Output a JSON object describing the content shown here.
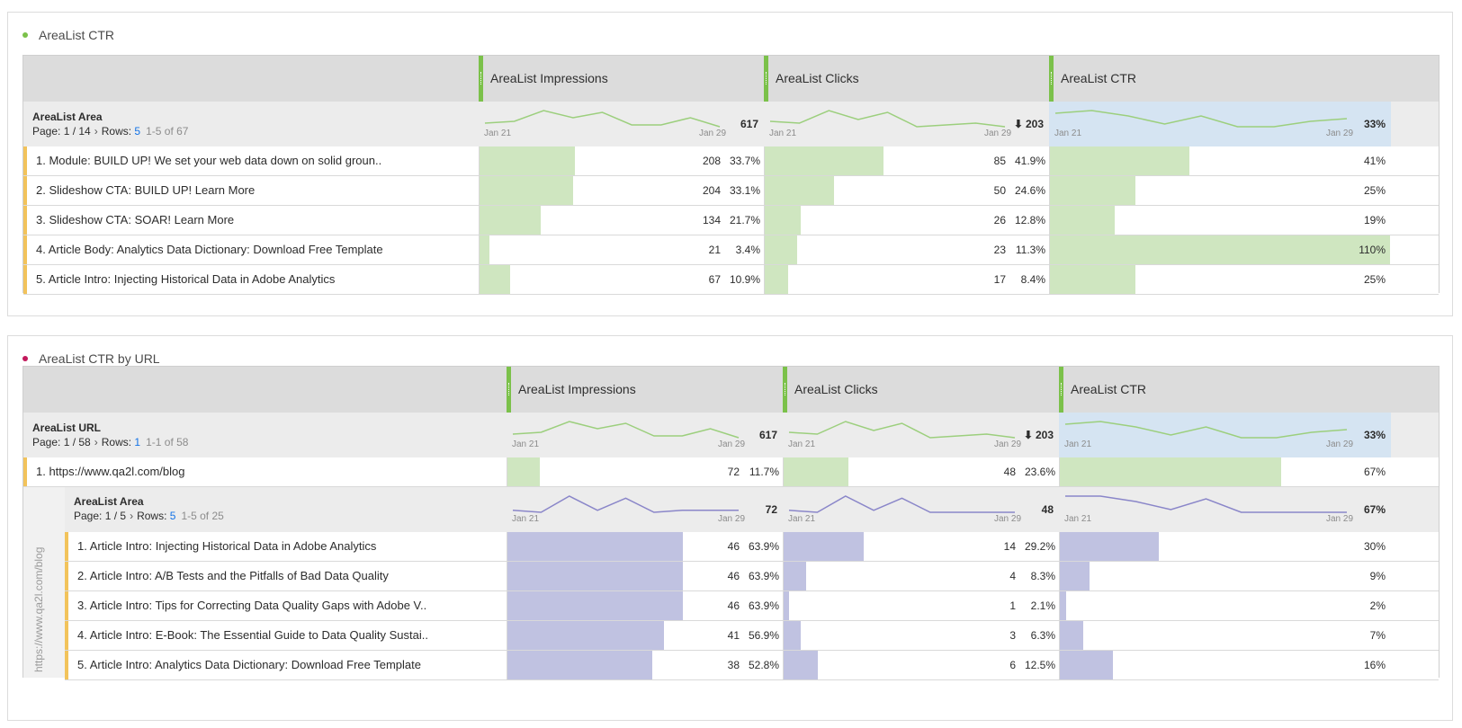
{
  "colors": {
    "green_bar": "#cfe6c0",
    "purple_bar": "#c0c2e1",
    "ctr_bg": "#d5e4f2",
    "green_line": "#9ccf7d",
    "purple_line": "#8a86c9",
    "row_marker": "#f2c35b"
  },
  "panel1": {
    "title": "AreaList CTR",
    "dot_color": "#7bc14a",
    "columns": [
      "AreaList Impressions",
      "AreaList Clicks",
      "AreaList CTR"
    ],
    "dimension": "AreaList Area",
    "pager": {
      "page_label": "Page:",
      "page": "1 / 14",
      "rows_label": "Rows:",
      "rows": "5",
      "range": "1-5 of 67"
    },
    "date_start": "Jan 21",
    "date_end": "Jan 29",
    "totals": {
      "impressions": "617",
      "clicks": "203",
      "ctr": "33%"
    },
    "spark_impr": [
      3,
      4,
      10,
      6,
      9,
      2,
      2,
      6,
      1
    ],
    "spark_clicks": [
      4,
      3,
      10,
      5,
      9,
      1,
      2,
      3,
      1
    ],
    "spark_ctr": [
      7,
      8,
      6,
      3,
      6,
      2,
      2,
      4,
      5
    ],
    "rows": [
      {
        "label": "1. Module: BUILD UP! We set your web data down on solid groun..",
        "impr": "208",
        "impr_pct": "33.7%",
        "impr_frac": 0.337,
        "clicks": "85",
        "clicks_pct": "41.9%",
        "clicks_frac": 0.419,
        "ctr": "41%",
        "ctr_frac": 0.41
      },
      {
        "label": "2. Slideshow CTA: BUILD UP! Learn More",
        "impr": "204",
        "impr_pct": "33.1%",
        "impr_frac": 0.331,
        "clicks": "50",
        "clicks_pct": "24.6%",
        "clicks_frac": 0.246,
        "ctr": "25%",
        "ctr_frac": 0.25
      },
      {
        "label": "3. Slideshow CTA: SOAR! Learn More",
        "impr": "134",
        "impr_pct": "21.7%",
        "impr_frac": 0.217,
        "clicks": "26",
        "clicks_pct": "12.8%",
        "clicks_frac": 0.128,
        "ctr": "19%",
        "ctr_frac": 0.19
      },
      {
        "label": "4. Article Body: Analytics Data Dictionary: Download Free Template",
        "impr": "21",
        "impr_pct": "3.4%",
        "impr_frac": 0.034,
        "clicks": "23",
        "clicks_pct": "11.3%",
        "clicks_frac": 0.113,
        "ctr": "110%",
        "ctr_frac": 1.0
      },
      {
        "label": "5. Article Intro: Injecting Historical Data in Adobe Analytics",
        "impr": "67",
        "impr_pct": "10.9%",
        "impr_frac": 0.109,
        "clicks": "17",
        "clicks_pct": "8.4%",
        "clicks_frac": 0.084,
        "ctr": "25%",
        "ctr_frac": 0.25
      }
    ]
  },
  "panel2": {
    "title": "AreaList CTR by URL",
    "dot_color": "#c2185b",
    "columns": [
      "AreaList Impressions",
      "AreaList Clicks",
      "AreaList CTR"
    ],
    "dimension": "AreaList URL",
    "pager": {
      "page_label": "Page:",
      "page": "1 / 58",
      "rows_label": "Rows:",
      "rows": "1",
      "range": "1-1 of 58"
    },
    "date_start": "Jan 21",
    "date_end": "Jan 29",
    "totals": {
      "impressions": "617",
      "clicks": "203",
      "ctr": "33%"
    },
    "spark_impr": [
      3,
      4,
      10,
      6,
      9,
      2,
      2,
      6,
      1
    ],
    "spark_clicks": [
      4,
      3,
      10,
      5,
      9,
      1,
      2,
      3,
      1
    ],
    "spark_ctr": [
      7,
      8,
      6,
      3,
      6,
      2,
      2,
      4,
      5
    ],
    "url_row": {
      "label": "1. https://www.qa2l.com/blog",
      "impr": "72",
      "impr_pct": "11.7%",
      "impr_frac": 0.117,
      "clicks": "48",
      "clicks_pct": "23.6%",
      "clicks_frac": 0.236,
      "ctr": "67%",
      "ctr_frac": 0.67
    },
    "breakdown": {
      "side_label": "https://www.qa2l.com/blog",
      "dimension": "AreaList Area",
      "pager": {
        "page_label": "Page:",
        "page": "1 / 5",
        "rows_label": "Rows:",
        "rows": "5",
        "range": "1-5 of 25"
      },
      "date_start": "Jan 21",
      "date_end": "Jan 29",
      "totals": {
        "impressions": "72",
        "clicks": "48",
        "ctr": "67%"
      },
      "spark_impr": [
        3,
        2,
        10,
        3,
        9,
        2,
        3,
        3,
        3
      ],
      "spark_clicks": [
        3,
        2,
        10,
        3,
        9,
        2,
        2,
        2,
        2
      ],
      "spark_ctr": [
        10,
        10,
        8,
        5,
        9,
        4,
        4,
        4,
        4
      ],
      "rows": [
        {
          "label": "1. Article Intro: Injecting Historical Data in Adobe Analytics",
          "impr": "46",
          "impr_pct": "63.9%",
          "impr_frac": 0.639,
          "clicks": "14",
          "clicks_pct": "29.2%",
          "clicks_frac": 0.292,
          "ctr": "30%",
          "ctr_frac": 0.3
        },
        {
          "label": "2. Article Intro: A/B Tests and the Pitfalls of Bad Data Quality",
          "impr": "46",
          "impr_pct": "63.9%",
          "impr_frac": 0.639,
          "clicks": "4",
          "clicks_pct": "8.3%",
          "clicks_frac": 0.083,
          "ctr": "9%",
          "ctr_frac": 0.09
        },
        {
          "label": "3. Article Intro: Tips for Correcting Data Quality Gaps with Adobe V..",
          "impr": "46",
          "impr_pct": "63.9%",
          "impr_frac": 0.639,
          "clicks": "1",
          "clicks_pct": "2.1%",
          "clicks_frac": 0.021,
          "ctr": "2%",
          "ctr_frac": 0.02
        },
        {
          "label": "4. Article Intro: E-Book: The Essential Guide to Data Quality Sustai..",
          "impr": "41",
          "impr_pct": "56.9%",
          "impr_frac": 0.569,
          "clicks": "3",
          "clicks_pct": "6.3%",
          "clicks_frac": 0.063,
          "ctr": "7%",
          "ctr_frac": 0.07
        },
        {
          "label": "5. Article Intro: Analytics Data Dictionary: Download Free Template",
          "impr": "38",
          "impr_pct": "52.8%",
          "impr_frac": 0.528,
          "clicks": "6",
          "clicks_pct": "12.5%",
          "clicks_frac": 0.125,
          "ctr": "16%",
          "ctr_frac": 0.16
        }
      ]
    }
  }
}
